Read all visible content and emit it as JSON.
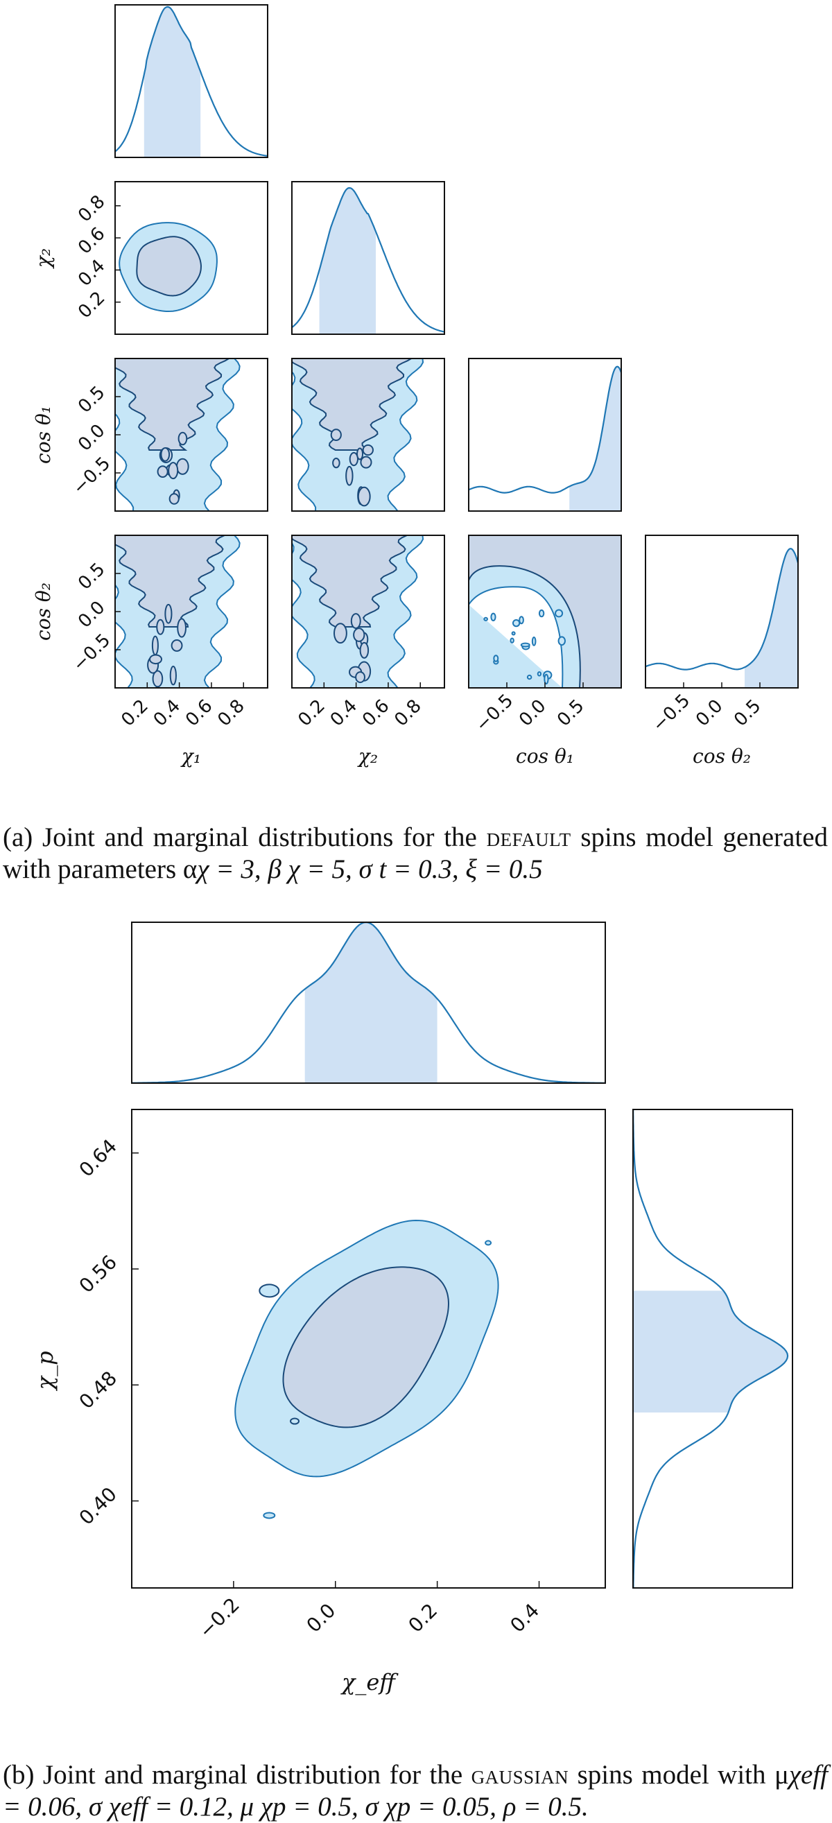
{
  "caption_a": {
    "prefix": "(a) Joint and marginal distributions for the ",
    "model": "default",
    "suffix": " spins model generated with parameters α",
    "params": "χ = 3, β χ = 5, σ t = 0.3, ξ = 0.5"
  },
  "caption_b": {
    "prefix": "(b) Joint and marginal distribution for the ",
    "model": "gaussian",
    "suffix": " spins model with μ",
    "params": "χeff = 0.06, σ χeff = 0.12, μ χp = 0.5, σ χp = 0.05, ρ = 0.5."
  },
  "colors": {
    "line": "#1f77b4",
    "fill_inner": "#c9d6e8",
    "fill_outer": "#c6e6f7",
    "band": "#cfe1f4",
    "frame": "#111111"
  },
  "chart_data": [
    {
      "type": "corner",
      "panel": "a",
      "parameters": [
        "χ1",
        "χ2",
        "cos θ1",
        "cos θ2"
      ],
      "axis_labels": [
        "χ₁",
        "χ₂",
        "cos θ₁",
        "cos θ₂"
      ],
      "ranges": {
        "chi": [
          0.0,
          0.95
        ],
        "cos": [
          -1.0,
          1.0
        ]
      },
      "ticks": {
        "chi": [
          "0.2",
          "0.4",
          "0.6",
          "0.8"
        ],
        "cos": [
          "−0.5",
          "0.0",
          "0.5"
        ]
      },
      "marginals": [
        {
          "param": "χ1",
          "mode": 0.32,
          "band": [
            0.19,
            0.54
          ]
        },
        {
          "param": "χ2",
          "mode": 0.36,
          "band": [
            0.18,
            0.53
          ]
        },
        {
          "param": "cos θ1",
          "peak": 0.95,
          "band": [
            0.32,
            1.0
          ]
        },
        {
          "param": "cos θ2",
          "peak": 0.92,
          "band": [
            0.3,
            1.0
          ]
        }
      ],
      "joint_chi1_chi2": {
        "center": [
          0.35,
          0.38
        ],
        "inner_radius": [
          0.12,
          0.16
        ],
        "outer_radius": [
          0.21,
          0.25
        ]
      }
    },
    {
      "type": "corner",
      "panel": "b",
      "parameters": [
        "χeff",
        "χp"
      ],
      "axis_labels": [
        "χ_eff",
        "χ_p"
      ],
      "xlim": [
        -0.4,
        0.53
      ],
      "ylim": [
        0.34,
        0.67
      ],
      "xticks": [
        "−0.2",
        "0.0",
        "0.2",
        "0.4"
      ],
      "yticks": [
        "0.40",
        "0.48",
        "0.56",
        "0.64"
      ],
      "marginals": [
        {
          "param": "χeff",
          "mean": 0.06,
          "sigma": 0.12,
          "band": [
            -0.06,
            0.2
          ]
        },
        {
          "param": "χp",
          "mean": 0.5,
          "sigma": 0.05,
          "band": [
            0.461,
            0.545
          ]
        }
      ],
      "correlation": 0.5
    }
  ]
}
